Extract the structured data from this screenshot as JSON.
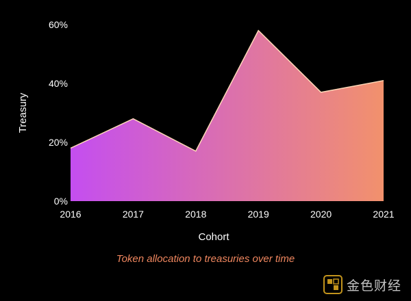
{
  "chart_data": {
    "type": "area",
    "x": [
      "2016",
      "2017",
      "2018",
      "2019",
      "2020",
      "2021"
    ],
    "series": [
      {
        "values": [
          18,
          28,
          17,
          58,
          37,
          41
        ]
      }
    ],
    "xlabel": "Cohort",
    "ylabel": "Treasury",
    "yticks": [
      "0%",
      "20%",
      "40%",
      "60%"
    ],
    "ylim": [
      0,
      60
    ],
    "grid": false,
    "fill_gradient": [
      "#c44ef0",
      "#f2916c"
    ],
    "caption": "Token allocation to treasuries over time"
  },
  "watermark": {
    "text": "金色财经",
    "icon": "golden-cube-logo"
  }
}
